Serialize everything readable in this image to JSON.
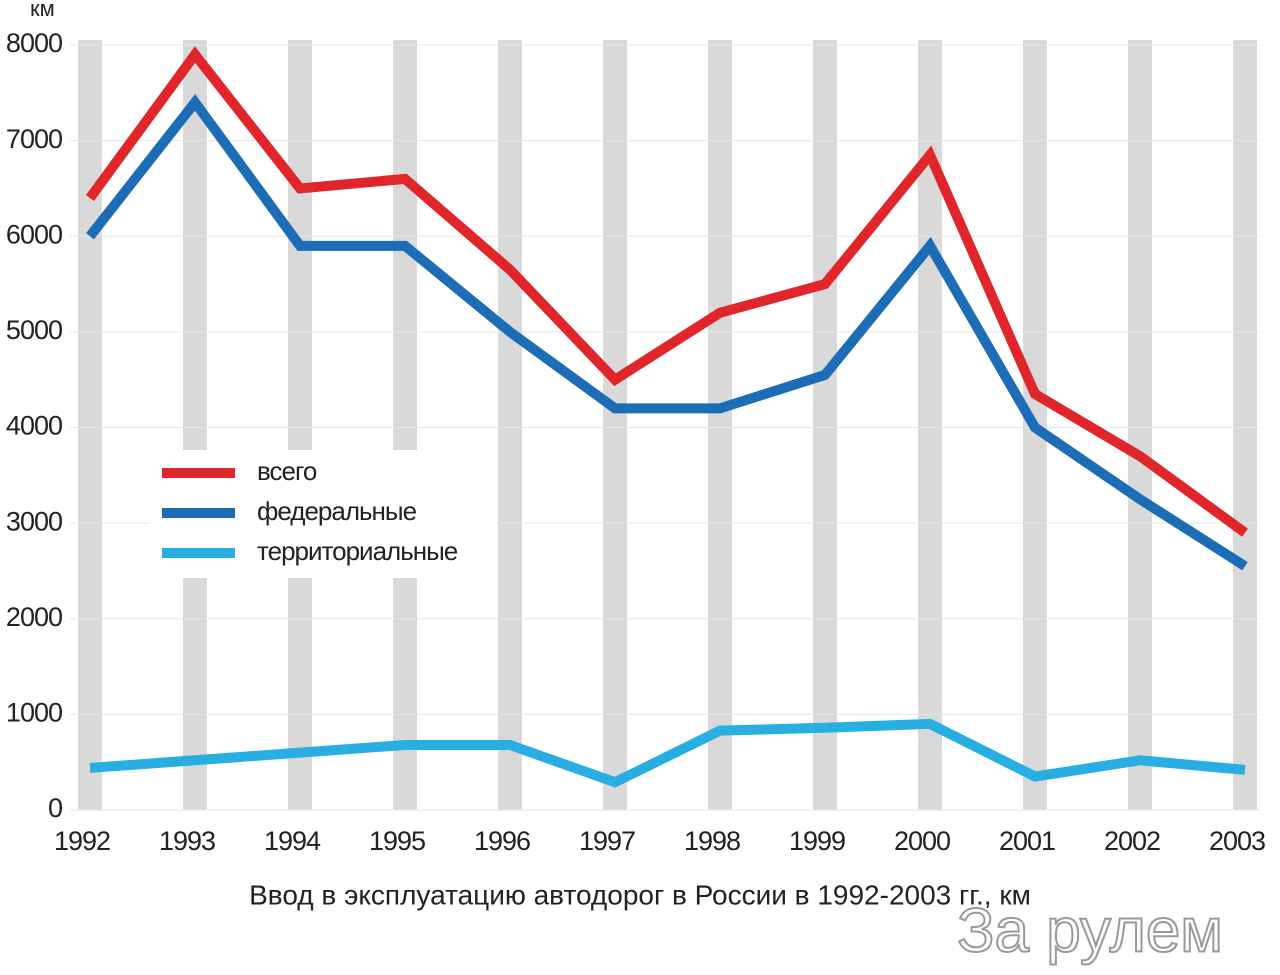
{
  "chart_data": {
    "type": "line",
    "title": "Ввод в эксплуатацию автодорог в России в 1992-2003 гг., км",
    "y_unit": "км",
    "watermark": "За рулем",
    "categories": [
      "1992",
      "1993",
      "1994",
      "1995",
      "1996",
      "1997",
      "1998",
      "1999",
      "2000",
      "2001",
      "2002",
      "2003"
    ],
    "series": [
      {
        "name": "всего",
        "color": "#e0262b",
        "values": [
          6400,
          7900,
          6500,
          6600,
          5650,
          4500,
          5200,
          5500,
          6850,
          4350,
          3700,
          2900
        ]
      },
      {
        "name": "федеральные",
        "color": "#1c6db5",
        "values": [
          6000,
          7400,
          5900,
          5900,
          5000,
          4200,
          4200,
          4550,
          5900,
          4000,
          3250,
          2550
        ]
      },
      {
        "name": "территориальные",
        "color": "#29aee3",
        "values": [
          440,
          520,
          600,
          680,
          680,
          290,
          830,
          860,
          900,
          350,
          520,
          420
        ]
      }
    ],
    "ylim": [
      0,
      8000
    ],
    "yticks": [
      0,
      1000,
      2000,
      3000,
      4000,
      5000,
      6000,
      7000,
      8000
    ],
    "grid": true,
    "legend": "left"
  }
}
